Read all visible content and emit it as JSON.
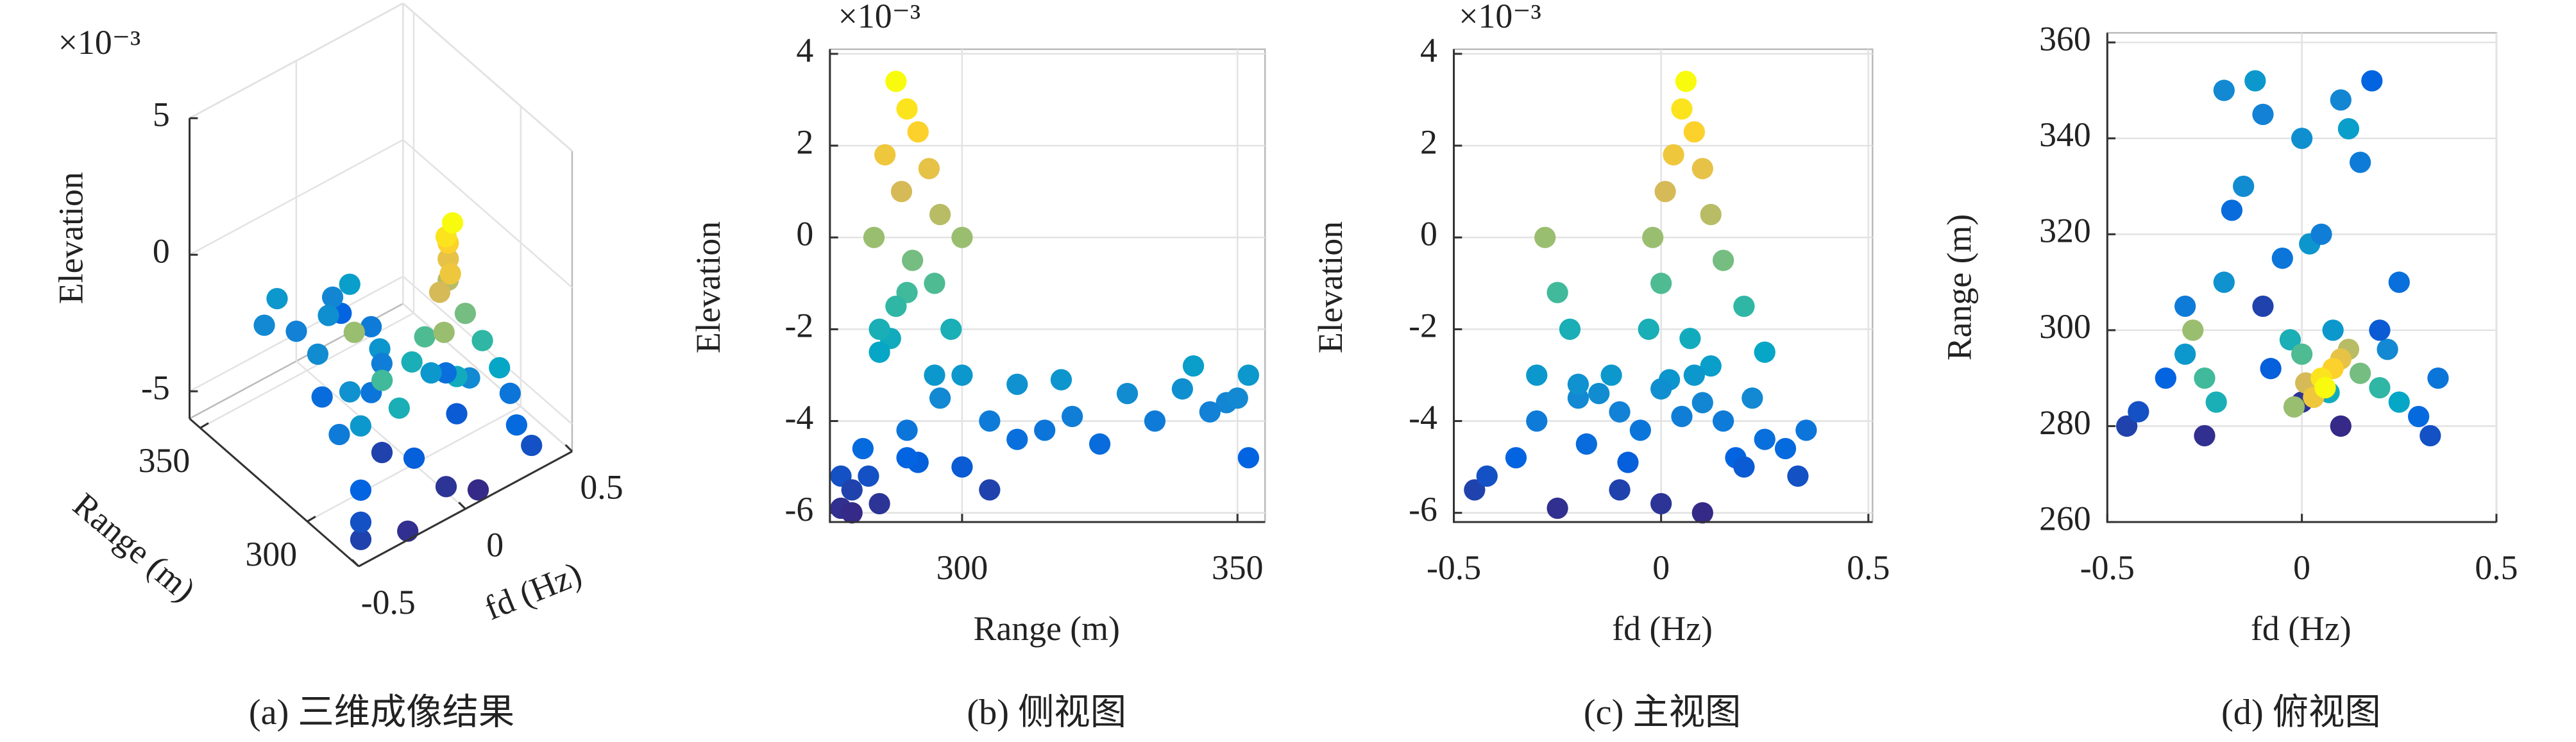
{
  "chart_data": [
    {
      "type": "scatter3d",
      "caption": "(a) 三维成像结果",
      "exponent_label": "×10⁻³",
      "xlabel": "fd (Hz)",
      "ylabel": "Range (m)",
      "zlabel": "Elevation",
      "xlim": [
        -0.5,
        0.5
      ],
      "ylim": [
        276,
        355
      ],
      "zlim": [
        -6,
        5
      ],
      "xticks": [
        -0.5,
        0,
        0.5
      ],
      "yticks": [
        300,
        350
      ],
      "zticks": [
        -5,
        0,
        5
      ],
      "grid": true,
      "colormap": [
        "#352a87",
        "#0363e1",
        "#1485d4",
        "#06a7c6",
        "#38b99e",
        "#92bf73",
        "#d9ba56",
        "#fcce2e",
        "#f9fb0e"
      ],
      "clim": [
        -6,
        3.4
      ],
      "x": [
        0.06,
        0.05,
        0.08,
        0.03,
        0.1,
        0.01,
        0.12,
        -0.02,
        0.15,
        0.0,
        0.2,
        -0.03,
        0.25,
        0.08,
        -0.28,
        -0.25,
        -0.22,
        -0.3,
        -0.2,
        -0.15,
        -0.2,
        -0.1,
        0.0,
        0.1,
        0.05,
        0.15,
        -0.05,
        -0.18,
        -0.35,
        -0.42,
        -0.45,
        0.3,
        0.33,
        0.2,
        -0.1,
        0.0,
        0.1,
        -0.25,
        0.35,
        -0.12,
        0.12,
        0.02,
        0.25,
        -0.3,
        0.18,
        0.07,
        -0.08,
        0.22
      ],
      "y": [
        288,
        290,
        292,
        286,
        294,
        289,
        296,
        284,
        291,
        295,
        288,
        298,
        285,
        300,
        300,
        290,
        285,
        295,
        310,
        330,
        350,
        345,
        340,
        348,
        320,
        335,
        315,
        325,
        290,
        283,
        280,
        282,
        278,
        300,
        305,
        285,
        280,
        278,
        290,
        352,
        342,
        318,
        310,
        305,
        352,
        287,
        292,
        296
      ],
      "z": [
        3.4,
        2.8,
        2.3,
        1.8,
        1.5,
        1.0,
        0.5,
        0.0,
        -0.5,
        -1.0,
        -1.5,
        -2.0,
        -2.5,
        -3.0,
        0.0,
        -1.2,
        -2.0,
        -3.0,
        -3.2,
        -3.4,
        -3.5,
        -3.8,
        -3.3,
        -3.6,
        -3.9,
        -4.0,
        -4.2,
        -4.5,
        -4.8,
        -5.2,
        -5.5,
        -4.6,
        -5.2,
        -5.0,
        -5.5,
        -5.8,
        -6.0,
        -5.9,
        -4.2,
        -3.0,
        -2.8,
        -3.1,
        -4.4,
        -4.0,
        -4.8,
        -2.2,
        -4.9,
        -3.5
      ]
    },
    {
      "type": "scatter",
      "caption": "(b) 侧视图",
      "exponent_label": "×10⁻³",
      "xlabel": "Range (m)",
      "ylabel": "Elevation",
      "xlim": [
        276,
        355
      ],
      "ylim": [
        -6.2,
        4.1
      ],
      "xticks": [
        300,
        350
      ],
      "yticks": [
        -6,
        -4,
        -2,
        0,
        2,
        4
      ],
      "grid": true,
      "colormap": [
        "#352a87",
        "#0363e1",
        "#1485d4",
        "#06a7c6",
        "#38b99e",
        "#92bf73",
        "#d9ba56",
        "#fcce2e",
        "#f9fb0e"
      ],
      "clim": [
        -6,
        3.4
      ],
      "x": [
        288,
        290,
        292,
        286,
        294,
        289,
        296,
        284,
        291,
        295,
        288,
        298,
        285,
        300,
        300,
        290,
        285,
        295,
        310,
        330,
        350,
        345,
        340,
        348,
        320,
        335,
        315,
        325,
        290,
        283,
        280,
        282,
        278,
        300,
        305,
        285,
        280,
        278,
        290,
        352,
        342,
        318,
        310,
        305,
        352,
        287,
        292,
        296
      ],
      "y": [
        3.4,
        2.8,
        2.3,
        1.8,
        1.5,
        1.0,
        0.5,
        0.0,
        -0.5,
        -1.0,
        -1.5,
        -2.0,
        -2.5,
        -3.0,
        0.0,
        -1.2,
        -2.0,
        -3.0,
        -3.2,
        -3.4,
        -3.5,
        -3.8,
        -3.3,
        -3.6,
        -3.9,
        -4.0,
        -4.2,
        -4.5,
        -4.8,
        -5.2,
        -5.5,
        -4.6,
        -5.2,
        -5.0,
        -5.5,
        -5.8,
        -6.0,
        -5.9,
        -4.2,
        -3.0,
        -2.8,
        -3.1,
        -4.4,
        -4.0,
        -4.8,
        -2.2,
        -4.9,
        -3.5
      ]
    },
    {
      "type": "scatter",
      "caption": "(c) 主视图",
      "exponent_label": "×10⁻³",
      "xlabel": "fd (Hz)",
      "ylabel": "Elevation",
      "xlim": [
        -0.5,
        0.51
      ],
      "ylim": [
        -6.2,
        4.1
      ],
      "xticks": [
        -0.5,
        0,
        0.5
      ],
      "yticks": [
        -6,
        -4,
        -2,
        0,
        2,
        4
      ],
      "grid": true,
      "colormap": [
        "#352a87",
        "#0363e1",
        "#1485d4",
        "#06a7c6",
        "#38b99e",
        "#92bf73",
        "#d9ba56",
        "#fcce2e",
        "#f9fb0e"
      ],
      "clim": [
        -6,
        3.4
      ],
      "x": [
        0.06,
        0.05,
        0.08,
        0.03,
        0.1,
        0.01,
        0.12,
        -0.02,
        0.15,
        0.0,
        0.2,
        -0.03,
        0.25,
        0.08,
        -0.28,
        -0.25,
        -0.22,
        -0.3,
        -0.2,
        -0.15,
        -0.2,
        -0.1,
        0.0,
        0.1,
        0.05,
        0.15,
        -0.05,
        -0.18,
        -0.35,
        -0.42,
        -0.45,
        0.3,
        0.33,
        0.2,
        -0.1,
        0.0,
        0.1,
        -0.25,
        0.35,
        -0.12,
        0.12,
        0.02,
        0.25,
        -0.3,
        0.18,
        0.07,
        -0.08,
        0.22
      ],
      "y": [
        3.4,
        2.8,
        2.3,
        1.8,
        1.5,
        1.0,
        0.5,
        0.0,
        -0.5,
        -1.0,
        -1.5,
        -2.0,
        -2.5,
        -3.0,
        0.0,
        -1.2,
        -2.0,
        -3.0,
        -3.2,
        -3.4,
        -3.5,
        -3.8,
        -3.3,
        -3.6,
        -3.9,
        -4.0,
        -4.2,
        -4.5,
        -4.8,
        -5.2,
        -5.5,
        -4.6,
        -5.2,
        -5.0,
        -5.5,
        -5.8,
        -6.0,
        -5.9,
        -4.2,
        -3.0,
        -2.8,
        -3.1,
        -4.4,
        -4.0,
        -4.8,
        -2.2,
        -4.9,
        -3.5
      ]
    },
    {
      "type": "scatter",
      "caption": "(d) 俯视图",
      "xlabel": "fd (Hz)",
      "ylabel": "Range (m)",
      "xlim": [
        -0.5,
        0.5
      ],
      "ylim": [
        260,
        362
      ],
      "xticks": [
        -0.5,
        0,
        0.5
      ],
      "yticks": [
        260,
        280,
        300,
        320,
        340,
        360
      ],
      "grid": true,
      "colormap": [
        "#352a87",
        "#0363e1",
        "#1485d4",
        "#06a7c6",
        "#38b99e",
        "#92bf73",
        "#d9ba56",
        "#fcce2e",
        "#f9fb0e"
      ],
      "clim": [
        -6,
        3.4
      ],
      "x": [
        0.06,
        0.05,
        0.08,
        0.03,
        0.1,
        0.01,
        0.12,
        -0.02,
        0.15,
        0.0,
        0.2,
        -0.03,
        0.25,
        0.08,
        -0.28,
        -0.25,
        -0.22,
        -0.3,
        -0.2,
        -0.15,
        -0.2,
        -0.1,
        0.0,
        0.1,
        0.05,
        0.15,
        -0.05,
        -0.18,
        -0.35,
        -0.42,
        -0.45,
        0.3,
        0.33,
        0.2,
        -0.1,
        0.0,
        0.1,
        -0.25,
        0.35,
        -0.12,
        0.12,
        0.02,
        0.25,
        -0.3,
        0.18,
        0.07,
        -0.08,
        0.22
      ],
      "y": [
        288,
        290,
        292,
        286,
        294,
        289,
        296,
        284,
        291,
        295,
        288,
        298,
        285,
        300,
        300,
        290,
        285,
        295,
        310,
        330,
        350,
        345,
        340,
        348,
        320,
        335,
        315,
        325,
        290,
        283,
        280,
        282,
        278,
        300,
        305,
        285,
        280,
        278,
        290,
        352,
        342,
        318,
        310,
        305,
        352,
        287,
        292,
        296
      ],
      "color_values": [
        3.4,
        2.8,
        2.3,
        1.8,
        1.5,
        1.0,
        0.5,
        0.0,
        -0.5,
        -1.0,
        -1.5,
        -2.0,
        -2.5,
        -3.0,
        0.0,
        -1.2,
        -2.0,
        -3.0,
        -3.2,
        -3.4,
        -3.5,
        -3.8,
        -3.3,
        -3.6,
        -3.9,
        -4.0,
        -4.2,
        -4.5,
        -4.8,
        -5.2,
        -5.5,
        -4.6,
        -5.2,
        -5.0,
        -5.5,
        -5.8,
        -6.0,
        -5.9,
        -4.2,
        -3.0,
        -2.8,
        -3.1,
        -4.4,
        -4.0,
        -4.8,
        -2.2,
        -4.9,
        -3.5
      ]
    }
  ]
}
